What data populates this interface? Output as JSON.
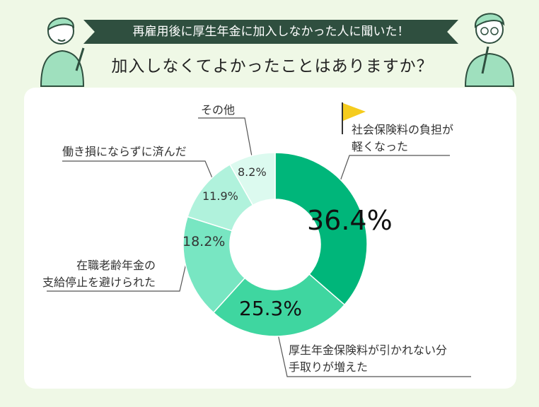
{
  "header": {
    "banner": "再雇用後に厚生年金に加入しなかった人に聞いた！",
    "question": "加入しなくてよかったことはありますか？"
  },
  "chart_data": {
    "type": "pie",
    "categories": [
      "社会保険料の負担が軽くなった",
      "厚生年金保険料が引かれない分手取りが増えた",
      "在職老齢年金の支給停止を避けられた",
      "働き損にならずに済んだ",
      "その他"
    ],
    "values": [
      36.4,
      25.3,
      18.2,
      11.9,
      8.2
    ],
    "value_labels": [
      "36.4%",
      "25.3%",
      "18.2%",
      "11.9%",
      "8.2%"
    ],
    "colors": [
      "#00b67a",
      "#3fd6a0",
      "#78e6c2",
      "#b0f2dc",
      "#dcfaef"
    ]
  },
  "labels": {
    "slice1": [
      "社会保険料の負担が",
      "軽くなった"
    ],
    "slice2": [
      "厚生年金保険料が引かれない分",
      "手取りが増えた"
    ],
    "slice3": [
      "在職老齢年金の",
      "支給停止を避けられた"
    ],
    "slice4": [
      "働き損にならずに済んだ"
    ],
    "slice5": [
      "その他"
    ]
  },
  "colors": {
    "background": "#eff8e6",
    "banner": "#2f4f3f",
    "flag": "#f5cc1e",
    "character": "#9fe0be"
  }
}
